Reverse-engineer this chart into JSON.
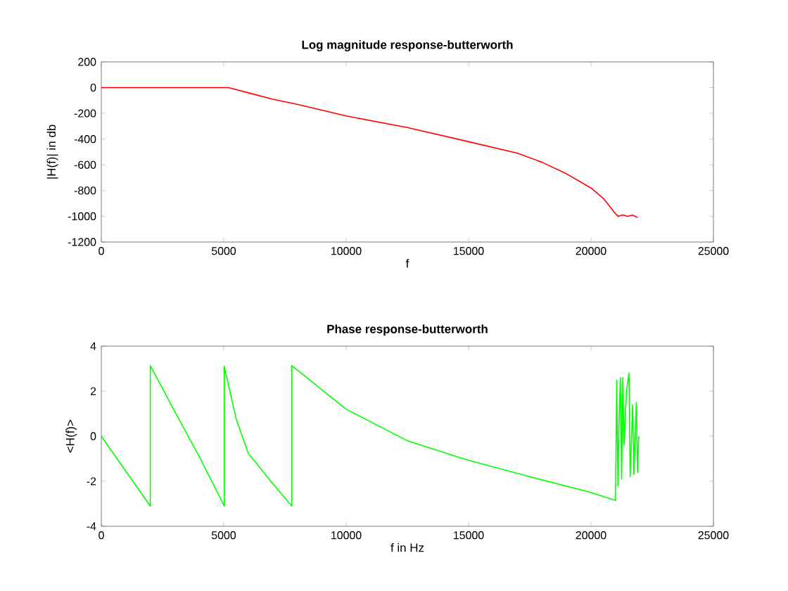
{
  "chart_data": [
    {
      "type": "line",
      "title": "Log magnitude response-butterworth",
      "xlabel": "f",
      "ylabel": "|H(f)| in db",
      "xlim": [
        0,
        25000
      ],
      "ylim": [
        -1200,
        200
      ],
      "xticks": [
        0,
        5000,
        10000,
        15000,
        20000,
        25000
      ],
      "yticks": [
        -1200,
        -1000,
        -800,
        -600,
        -400,
        -200,
        0,
        200
      ],
      "series": [
        {
          "color": "#ff0000",
          "x": [
            0,
            5000,
            5200,
            6000,
            7000,
            8000,
            10000,
            12500,
            15000,
            17000,
            18000,
            19000,
            20000,
            20500,
            21000,
            21100,
            21300,
            21500,
            21700,
            21900
          ],
          "values": [
            0,
            0,
            0,
            -40,
            -90,
            -130,
            -220,
            -310,
            -420,
            -510,
            -580,
            -670,
            -780,
            -860,
            -980,
            -1000,
            -990,
            -1000,
            -990,
            -1010
          ]
        }
      ]
    },
    {
      "type": "line",
      "title": "Phase response-butterworth",
      "xlabel": "f in Hz",
      "ylabel": "<H(f)>",
      "xlim": [
        0,
        25000
      ],
      "ylim": [
        -4,
        4
      ],
      "xticks": [
        0,
        5000,
        10000,
        15000,
        20000,
        25000
      ],
      "yticks": [
        -4,
        -2,
        0,
        2,
        4
      ],
      "series": [
        {
          "color": "#00ff00",
          "x": [
            0,
            2000,
            2000,
            3000,
            4000,
            5020,
            5020,
            5500,
            6000,
            7000,
            7780,
            7780,
            10000,
            12500,
            15000,
            17500,
            20000,
            21000,
            21050,
            21100,
            21150,
            21200,
            21250,
            21300,
            21350,
            21450,
            21550,
            21600,
            21700,
            21750,
            21850,
            21900,
            21950
          ],
          "values": [
            0,
            -3.1,
            3.14,
            1.1,
            -0.9,
            -3.1,
            3.1,
            0.8,
            -0.76,
            -2.1,
            -3.1,
            3.14,
            1.2,
            -0.2,
            -1.07,
            -1.8,
            -2.5,
            -2.85,
            2.5,
            -2.2,
            1.0,
            2.6,
            -1.9,
            2.6,
            -0.4,
            2.0,
            2.8,
            -1.8,
            1.4,
            -1.7,
            1.5,
            -1.6,
            0
          ]
        }
      ]
    }
  ]
}
